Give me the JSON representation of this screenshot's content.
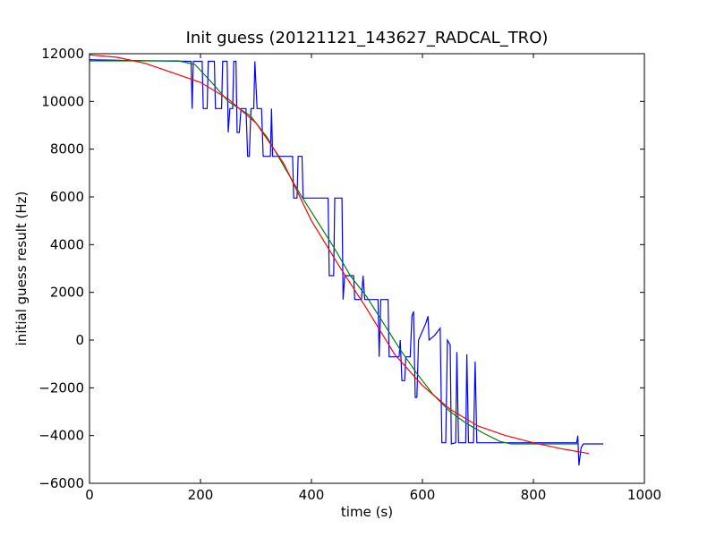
{
  "chart_data": {
    "type": "line",
    "title": "Init guess (20121121_143627_RADCAL_TRO)",
    "xlabel": "time (s)",
    "ylabel": "initial guess result (Hz)",
    "xlim": [
      0,
      1000
    ],
    "ylim": [
      -6000,
      12000
    ],
    "xticks": [
      0,
      200,
      400,
      600,
      800,
      1000
    ],
    "yticks": [
      -6000,
      -4000,
      -2000,
      0,
      2000,
      4000,
      6000,
      8000,
      10000,
      12000
    ],
    "grid": false,
    "legend": "none",
    "series": [
      {
        "color": "#0000ff",
        "points": [
          [
            0,
            11750
          ],
          [
            60,
            11720
          ],
          [
            120,
            11700
          ],
          [
            180,
            11680
          ],
          [
            183,
            11680
          ],
          [
            185,
            9700
          ],
          [
            187,
            11680
          ],
          [
            200,
            11680
          ],
          [
            203,
            11680
          ],
          [
            205,
            9700
          ],
          [
            212,
            9700
          ],
          [
            214,
            11680
          ],
          [
            225,
            11680
          ],
          [
            227,
            9700
          ],
          [
            238,
            9700
          ],
          [
            240,
            11680
          ],
          [
            248,
            11680
          ],
          [
            250,
            8700
          ],
          [
            253,
            9700
          ],
          [
            258,
            9700
          ],
          [
            260,
            11680
          ],
          [
            264,
            11680
          ],
          [
            266,
            8700
          ],
          [
            270,
            8700
          ],
          [
            273,
            9700
          ],
          [
            282,
            9700
          ],
          [
            285,
            7700
          ],
          [
            288,
            7700
          ],
          [
            291,
            9700
          ],
          [
            296,
            9700
          ],
          [
            298,
            11680
          ],
          [
            302,
            9700
          ],
          [
            310,
            9700
          ],
          [
            313,
            7700
          ],
          [
            326,
            7700
          ],
          [
            328,
            9700
          ],
          [
            330,
            7700
          ],
          [
            366,
            7700
          ],
          [
            368,
            5950
          ],
          [
            374,
            5950
          ],
          [
            376,
            7700
          ],
          [
            383,
            7700
          ],
          [
            385,
            5950
          ],
          [
            430,
            5950
          ],
          [
            432,
            2700
          ],
          [
            440,
            2700
          ],
          [
            442,
            5950
          ],
          [
            455,
            5950
          ],
          [
            457,
            1700
          ],
          [
            460,
            2700
          ],
          [
            476,
            2700
          ],
          [
            478,
            1700
          ],
          [
            490,
            1700
          ],
          [
            493,
            2700
          ],
          [
            496,
            1700
          ],
          [
            520,
            1700
          ],
          [
            522,
            -700
          ],
          [
            525,
            1700
          ],
          [
            538,
            1700
          ],
          [
            540,
            -700
          ],
          [
            558,
            -700
          ],
          [
            560,
            0
          ],
          [
            563,
            -1700
          ],
          [
            568,
            -1700
          ],
          [
            570,
            -700
          ],
          [
            578,
            -700
          ],
          [
            581,
            1000
          ],
          [
            584,
            1200
          ],
          [
            587,
            -2400
          ],
          [
            590,
            -2400
          ],
          [
            593,
            0
          ],
          [
            606,
            700
          ],
          [
            610,
            1000
          ],
          [
            612,
            0
          ],
          [
            622,
            200
          ],
          [
            632,
            500
          ],
          [
            635,
            -4300
          ],
          [
            642,
            -4300
          ],
          [
            645,
            0
          ],
          [
            650,
            -200
          ],
          [
            652,
            -4350
          ],
          [
            660,
            -4300
          ],
          [
            662,
            -500
          ],
          [
            665,
            -4300
          ],
          [
            678,
            -4300
          ],
          [
            680,
            -600
          ],
          [
            683,
            -4300
          ],
          [
            692,
            -4300
          ],
          [
            695,
            -900
          ],
          [
            698,
            -4300
          ],
          [
            720,
            -4300
          ],
          [
            800,
            -4300
          ],
          [
            878,
            -4300
          ],
          [
            880,
            -4000
          ],
          [
            882,
            -5250
          ],
          [
            886,
            -4500
          ],
          [
            890,
            -4350
          ],
          [
            926,
            -4350
          ]
        ]
      },
      {
        "color": "#008000",
        "points": [
          [
            0,
            11700
          ],
          [
            80,
            11700
          ],
          [
            160,
            11700
          ],
          [
            190,
            11550
          ],
          [
            220,
            10800
          ],
          [
            250,
            10000
          ],
          [
            290,
            9400
          ],
          [
            320,
            8500
          ],
          [
            350,
            7300
          ],
          [
            380,
            6100
          ],
          [
            410,
            5000
          ],
          [
            440,
            3900
          ],
          [
            470,
            2700
          ],
          [
            500,
            1800
          ],
          [
            530,
            700
          ],
          [
            560,
            -400
          ],
          [
            590,
            -1400
          ],
          [
            620,
            -2300
          ],
          [
            650,
            -3000
          ],
          [
            680,
            -3500
          ],
          [
            710,
            -3900
          ],
          [
            740,
            -4250
          ],
          [
            760,
            -4350
          ],
          [
            800,
            -4350
          ],
          [
            880,
            -4350
          ]
        ]
      },
      {
        "color": "#ff0000",
        "points": [
          [
            0,
            11950
          ],
          [
            50,
            11850
          ],
          [
            100,
            11600
          ],
          [
            150,
            11200
          ],
          [
            200,
            10800
          ],
          [
            250,
            10100
          ],
          [
            300,
            9100
          ],
          [
            350,
            7400
          ],
          [
            400,
            5000
          ],
          [
            450,
            3100
          ],
          [
            500,
            1300
          ],
          [
            550,
            -600
          ],
          [
            600,
            -1900
          ],
          [
            650,
            -2900
          ],
          [
            700,
            -3600
          ],
          [
            750,
            -4000
          ],
          [
            800,
            -4300
          ],
          [
            850,
            -4550
          ],
          [
            900,
            -4750
          ]
        ]
      }
    ]
  }
}
